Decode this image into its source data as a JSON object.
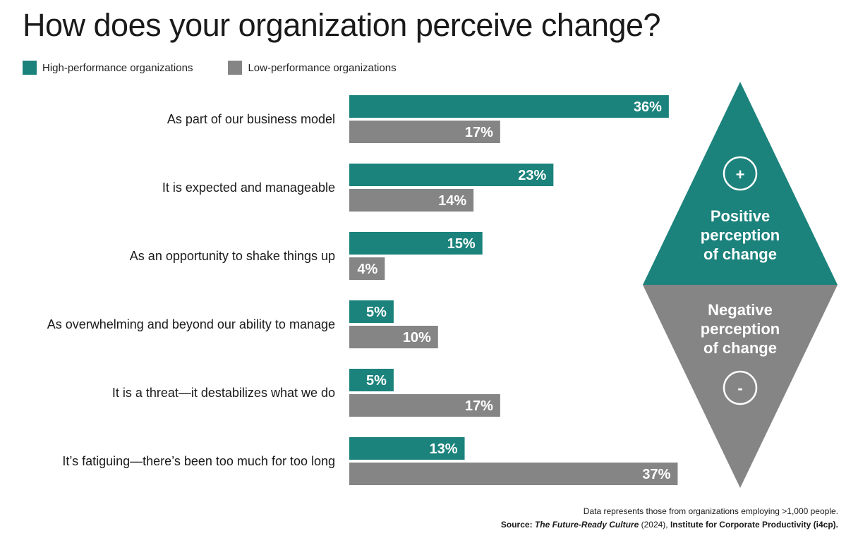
{
  "title": "How does your organization perceive change?",
  "colors": {
    "high": "#1b827c",
    "low": "#858585"
  },
  "chart_data": {
    "type": "bar",
    "orientation": "horizontal",
    "categories": [
      "As part of our business model",
      "It is expected and manageable",
      "As an opportunity to shake things up",
      "As overwhelming and beyond our ability to manage",
      "It is a threat—it destabilizes what we do",
      "It’s fatiguing—there’s been too much for too long"
    ],
    "series": [
      {
        "name": "High-performance organizations",
        "values": [
          36,
          23,
          15,
          5,
          5,
          13
        ]
      },
      {
        "name": "Low-performance organizations",
        "values": [
          17,
          14,
          4,
          10,
          17,
          37
        ]
      }
    ],
    "value_suffix": "%",
    "legend_position": "top-left",
    "grid": false
  },
  "indicator": {
    "positive_symbol": "+",
    "positive_lines": [
      "Positive",
      "perception",
      "of change"
    ],
    "negative_lines": [
      "Negative",
      "perception",
      "of change"
    ],
    "negative_symbol": "-"
  },
  "footer": {
    "note": "Data represents those from organizations employing >1,000 people.",
    "source_prefix": "Source: ",
    "source_title": "The Future-Ready Culture",
    "source_year": " (2024), ",
    "source_org": "Institute for Corporate Productivity (i4cp)."
  }
}
